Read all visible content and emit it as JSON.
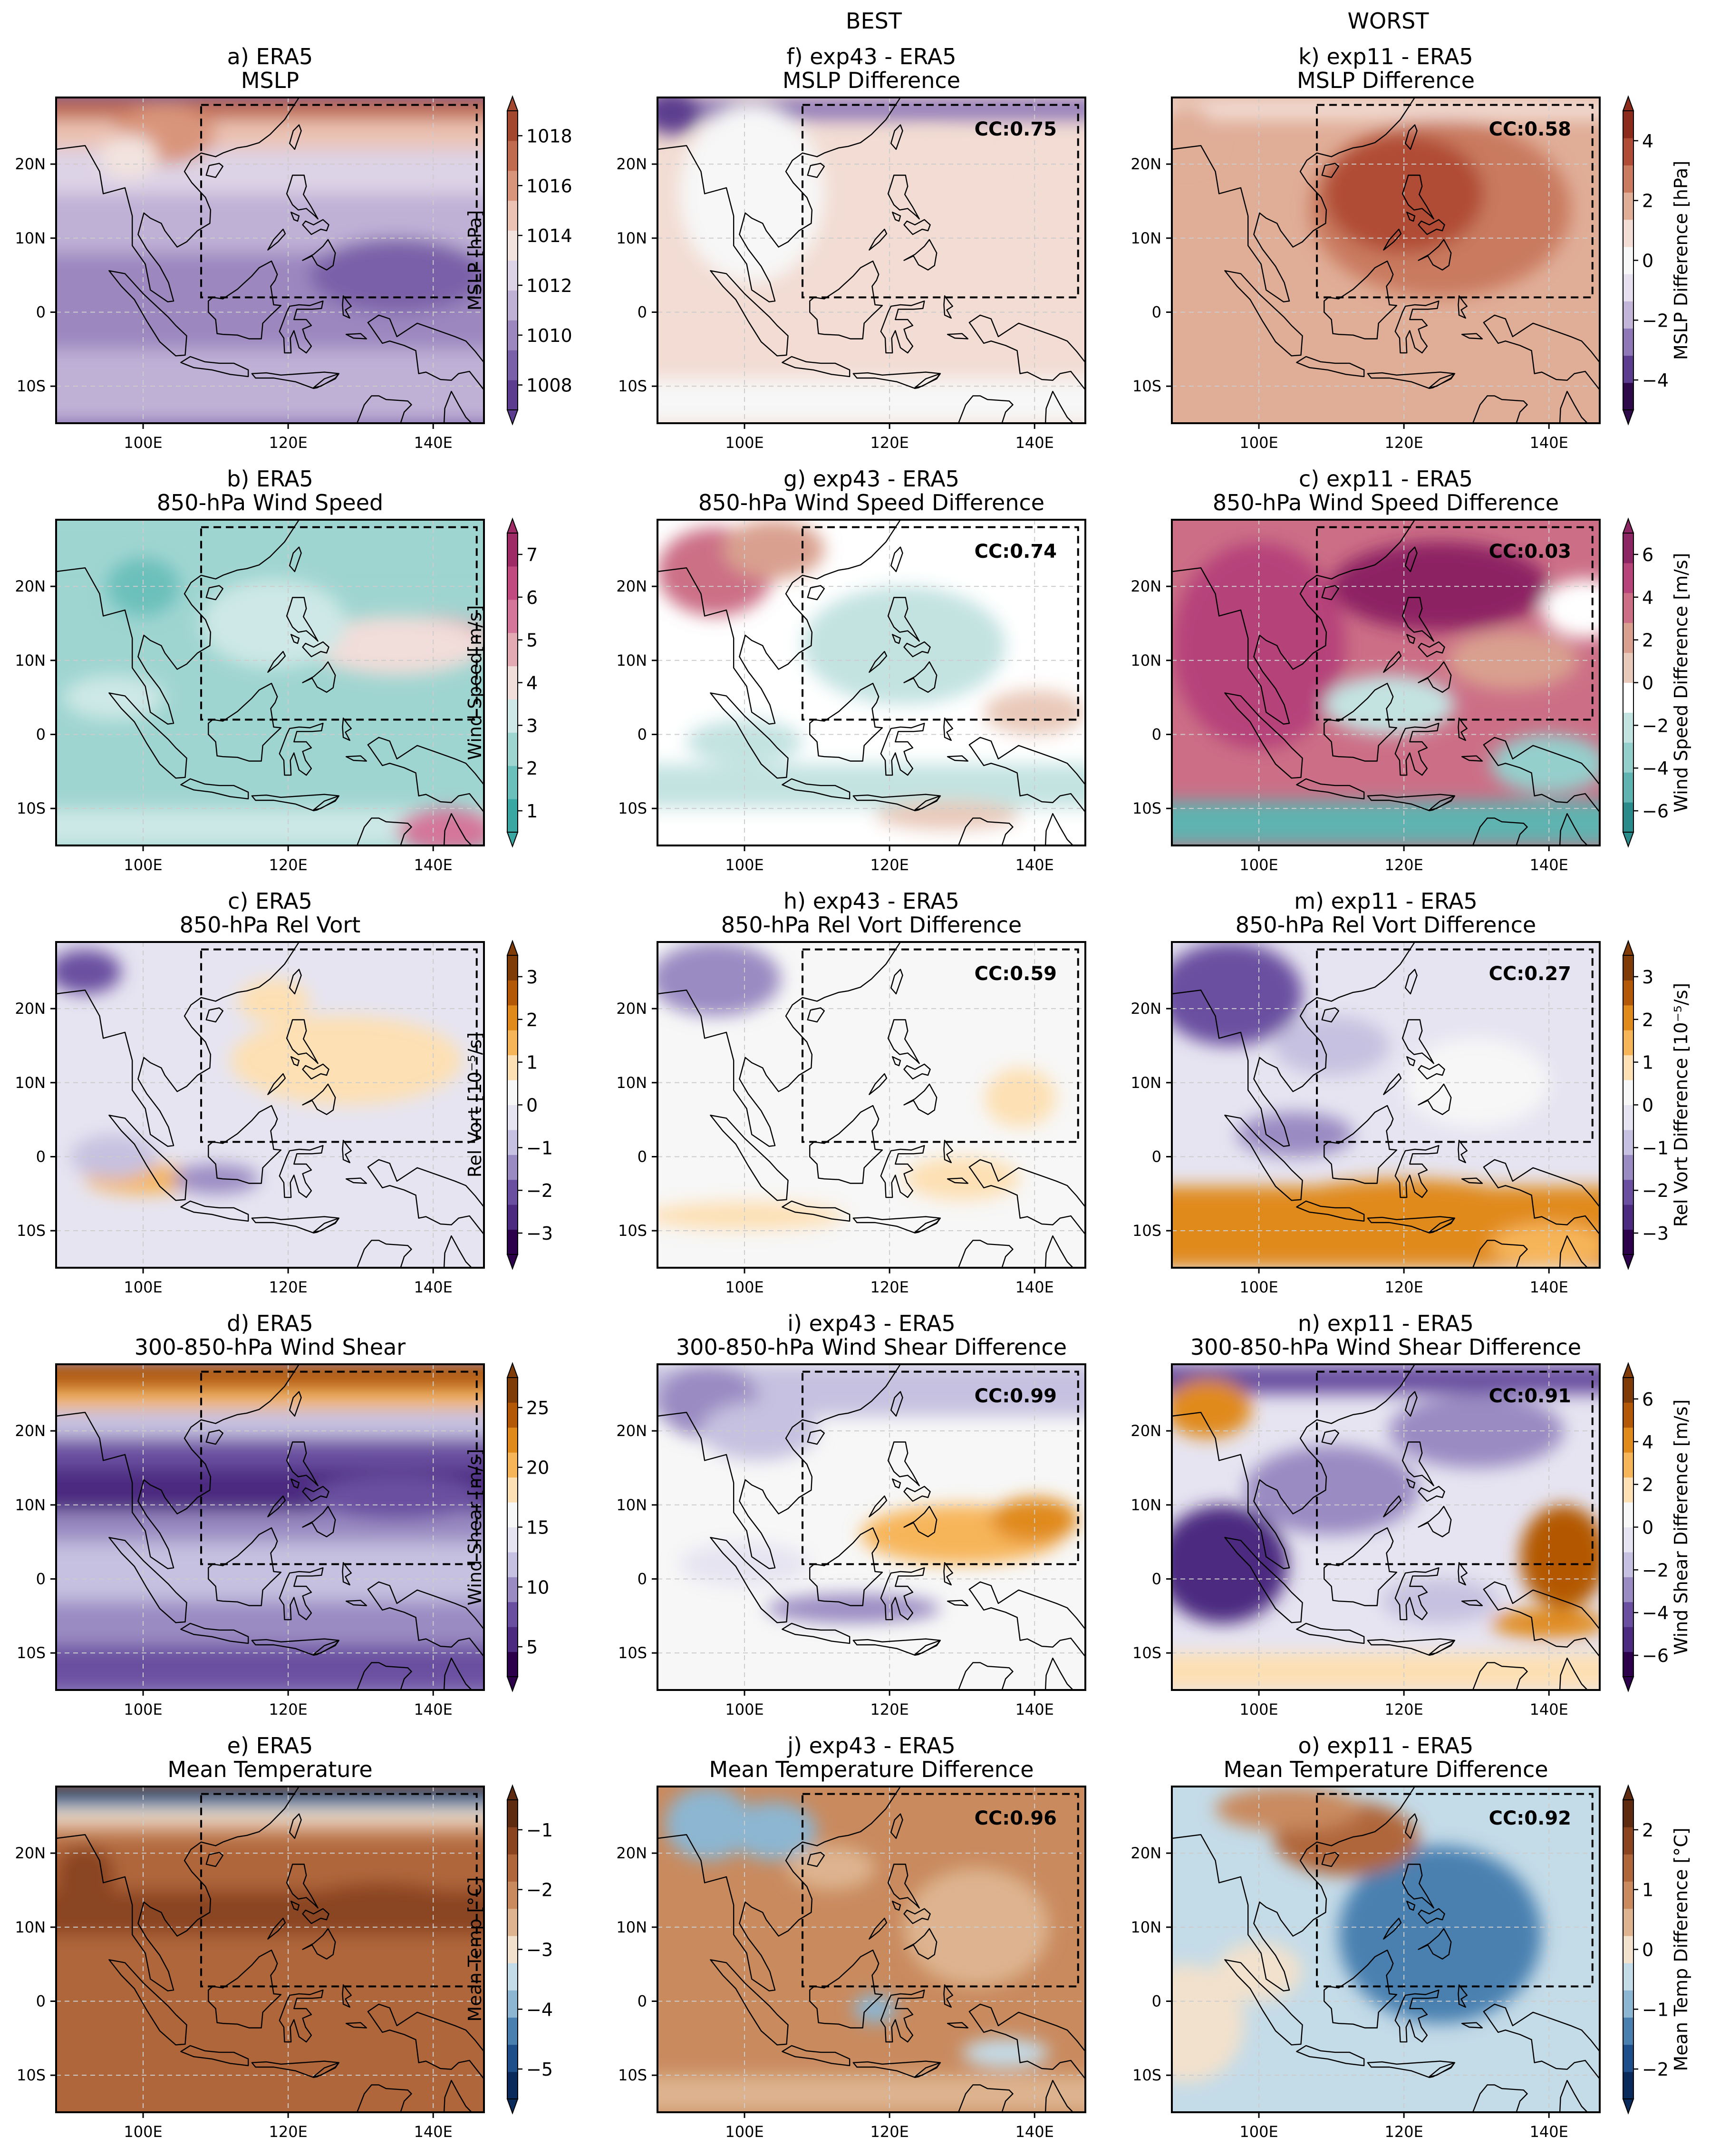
{
  "figure": {
    "column_headers": [
      "",
      "BEST",
      "WORST"
    ],
    "lon_ticks": [
      "100E",
      "120E",
      "140E"
    ],
    "lat_ticks": [
      "20N",
      "10N",
      "0",
      "10S"
    ]
  },
  "panels": [
    {
      "row": 0,
      "col": 0,
      "title1": "a) ERA5",
      "title2": "MSLP",
      "palette": "purple_red",
      "kind": "mslp",
      "cc": null
    },
    {
      "row": 0,
      "col": 1,
      "title1": "f) exp43 - ERA5",
      "title2": "MSLP Difference",
      "palette": "diff_mslp",
      "kind": "mslp_best",
      "cc": "CC:0.75"
    },
    {
      "row": 0,
      "col": 2,
      "title1": "k) exp11 - ERA5",
      "title2": "MSLP Difference",
      "palette": "diff_mslp",
      "kind": "mslp_worst",
      "cc": "CC:0.58"
    },
    {
      "row": 1,
      "col": 0,
      "title1": "b) ERA5",
      "title2": "850-hPa Wind Speed",
      "palette": "teal_pink",
      "kind": "ws",
      "cc": null
    },
    {
      "row": 1,
      "col": 1,
      "title1": "g) exp43 - ERA5",
      "title2": "850-hPa Wind Speed Difference",
      "palette": "diff_ws",
      "kind": "ws_best",
      "cc": "CC:0.74"
    },
    {
      "row": 1,
      "col": 2,
      "title1": "c) exp11 - ERA5",
      "title2": "850-hPa Wind Speed Difference",
      "palette": "diff_ws",
      "kind": "ws_worst",
      "cc": "CC:0.03"
    },
    {
      "row": 2,
      "col": 0,
      "title1": "c) ERA5",
      "title2": "850-hPa Rel Vort",
      "palette": "purple_orange",
      "kind": "vort",
      "cc": null
    },
    {
      "row": 2,
      "col": 1,
      "title1": "h) exp43 - ERA5",
      "title2": "850-hPa Rel Vort Difference",
      "palette": "purple_orange",
      "kind": "vort_best",
      "cc": "CC:0.59"
    },
    {
      "row": 2,
      "col": 2,
      "title1": "m) exp11 - ERA5",
      "title2": "850-hPa Rel Vort Difference",
      "palette": "purple_orange",
      "kind": "vort_worst",
      "cc": "CC:0.27"
    },
    {
      "row": 3,
      "col": 0,
      "title1": "d) ERA5",
      "title2": "300-850-hPa Wind Shear",
      "palette": "purple_orange",
      "kind": "shear",
      "cc": null
    },
    {
      "row": 3,
      "col": 1,
      "title1": "i) exp43 - ERA5",
      "title2": "300-850-hPa Wind Shear Difference",
      "palette": "purple_orange",
      "kind": "shear_best",
      "cc": "CC:0.99"
    },
    {
      "row": 3,
      "col": 2,
      "title1": "n) exp11 - ERA5",
      "title2": "300-850-hPa Wind Shear Difference",
      "palette": "purple_orange",
      "kind": "shear_worst",
      "cc": "CC:0.91"
    },
    {
      "row": 4,
      "col": 0,
      "title1": "e) ERA5",
      "title2": "Mean Temperature",
      "palette": "blue_brown",
      "kind": "temp",
      "cc": null
    },
    {
      "row": 4,
      "col": 1,
      "title1": "j) exp43 - ERA5",
      "title2": "Mean Temperature Difference",
      "palette": "blue_brown",
      "kind": "temp_best",
      "cc": "CC:0.96"
    },
    {
      "row": 4,
      "col": 2,
      "title1": "o) exp11 - ERA5",
      "title2": "Mean Temperature Difference",
      "palette": "blue_brown",
      "kind": "temp_worst",
      "cc": "CC:0.92"
    }
  ],
  "colorbars": [
    {
      "row": 0,
      "col": 0,
      "label": "MSLP [hPa]",
      "ticks": [
        "1008",
        "1010",
        "1012",
        "1014",
        "1016",
        "1018"
      ],
      "palette": "purple_red"
    },
    {
      "row": 0,
      "col": 2,
      "label": "MSLP Difference [hPa]",
      "ticks": [
        "−4",
        "−2",
        "0",
        "2",
        "4"
      ],
      "palette": "diff_mslp"
    },
    {
      "row": 1,
      "col": 0,
      "label": "Wind Speed[m/s]",
      "ticks": [
        "1",
        "2",
        "3",
        "4",
        "5",
        "6",
        "7"
      ],
      "palette": "teal_pink"
    },
    {
      "row": 1,
      "col": 2,
      "label": "Wind Speed Difference [m/s]",
      "ticks": [
        "−6",
        "−4",
        "−2",
        "0",
        "2",
        "4",
        "6"
      ],
      "palette": "diff_ws"
    },
    {
      "row": 2,
      "col": 0,
      "label": "Rel Vort [10⁻⁵/s]",
      "ticks": [
        "−3",
        "−2",
        "−1",
        "0",
        "1",
        "2",
        "3"
      ],
      "palette": "purple_orange"
    },
    {
      "row": 2,
      "col": 2,
      "label": "Rel Vort Difference [10⁻⁵/s]",
      "ticks": [
        "−3",
        "−2",
        "−1",
        "0",
        "1",
        "2",
        "3"
      ],
      "palette": "purple_orange"
    },
    {
      "row": 3,
      "col": 0,
      "label": "Wind Shear [m/s]",
      "ticks": [
        "5",
        "10",
        "15",
        "20",
        "25"
      ],
      "palette": "purple_orange"
    },
    {
      "row": 3,
      "col": 2,
      "label": "Wind Shear Difference [m/s]",
      "ticks": [
        "−6",
        "−4",
        "−2",
        "0",
        "2",
        "4",
        "6"
      ],
      "palette": "purple_orange"
    },
    {
      "row": 4,
      "col": 0,
      "label": "Mean Temp [°C]",
      "ticks": [
        "−5",
        "−4",
        "−3",
        "−2",
        "−1"
      ],
      "palette": "blue_brown"
    },
    {
      "row": 4,
      "col": 2,
      "label": "Mean Temp Difference [°C]",
      "ticks": [
        "−2",
        "−1",
        "0",
        "1",
        "2"
      ],
      "palette": "blue_brown"
    }
  ],
  "palettes": {
    "purple_red": [
      "#5b3c8f",
      "#7a60a8",
      "#9c87bf",
      "#bfb0d6",
      "#ddd3e6",
      "#f2e3df",
      "#ebc2b3",
      "#d9957c",
      "#c06a4f",
      "#a3472f"
    ],
    "diff_mslp": [
      "#2e0a4a",
      "#5b3c8f",
      "#8f78b8",
      "#c2b5d8",
      "#e6e0ee",
      "#f7f7f7",
      "#f2dcd3",
      "#e0ad97",
      "#c97a5f",
      "#b04c35",
      "#8c2a1c"
    ],
    "teal_pink": [
      "#3aa7a3",
      "#6cc0bb",
      "#9fd5d1",
      "#cde8e6",
      "#f1ddd9",
      "#e3aab4",
      "#d4769a",
      "#c14a80",
      "#9e2a66"
    ],
    "diff_ws": [
      "#2a8c8a",
      "#5fb3b0",
      "#94cfcc",
      "#c3e3e1",
      "#ffffff",
      "#e9c9b9",
      "#d9a08f",
      "#cc6f86",
      "#b6437a",
      "#8d2463"
    ],
    "purple_orange": [
      "#2d004b",
      "#4b2a80",
      "#6a4fa0",
      "#9a8bc2",
      "#c6c1e0",
      "#e6e4f1",
      "#f7f7f7",
      "#fde0b3",
      "#f7b55a",
      "#e08a1c",
      "#b35806",
      "#7f3b08"
    ],
    "blue_brown": [
      "#0b2a5c",
      "#1f4f8a",
      "#4a80b0",
      "#8cb6d1",
      "#c4dbe8",
      "#f2e1cc",
      "#ddb48f",
      "#c98a5e",
      "#b0663b",
      "#8a4520",
      "#5e2a10"
    ]
  },
  "ui_colors": {
    "land_outline": "#000000",
    "box": "#000000",
    "grid": "#cccccc"
  }
}
